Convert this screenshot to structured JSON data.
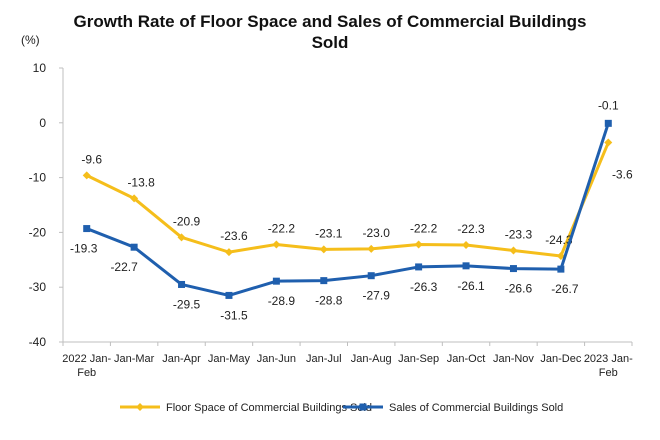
{
  "chart_data": {
    "type": "line",
    "title_line1": "Growth Rate of Floor Space and Sales of Commercial Buildings",
    "title_line2": "Sold",
    "unit": "(%)",
    "categories": [
      [
        "2022 Jan-",
        "Feb"
      ],
      [
        "Jan-Mar"
      ],
      [
        "Jan-Apr"
      ],
      [
        "Jan-May"
      ],
      [
        "Jan-Jun"
      ],
      [
        "Jan-Jul"
      ],
      [
        "Jan-Aug"
      ],
      [
        "Jan-Sep"
      ],
      [
        "Jan-Oct"
      ],
      [
        "Jan-Nov"
      ],
      [
        "Jan-Dec"
      ],
      [
        "2023 Jan-",
        "Feb"
      ]
    ],
    "ylim": [
      -40,
      10
    ],
    "yticks": [
      10,
      0,
      -10,
      -20,
      -30,
      -40
    ],
    "grid": false,
    "legend_position": "bottom",
    "series": [
      {
        "name": "Floor Space of Commercial Buildings Sold",
        "color": "#F5BE1B",
        "marker": "diamond",
        "values": [
          -9.6,
          -13.8,
          -20.9,
          -23.6,
          -22.2,
          -23.1,
          -23.0,
          -22.2,
          -22.3,
          -23.3,
          -24.3,
          -3.6
        ],
        "labels": [
          "-9.6",
          "-13.8",
          "-20.9",
          "-23.6",
          "-22.2",
          "-23.1",
          "-23.0",
          "-22.2",
          "-22.3",
          "-23.3",
          "-24.3",
          "-3.6"
        ]
      },
      {
        "name": "Sales of Commercial Buildings Sold",
        "color": "#1F5FAE",
        "marker": "square",
        "values": [
          -19.3,
          -22.7,
          -29.5,
          -31.5,
          -28.9,
          -28.8,
          -27.9,
          -26.3,
          -26.1,
          -26.6,
          -26.7,
          -0.1
        ],
        "labels": [
          "-19.3",
          "-22.7",
          "-29.5",
          "-31.5",
          "-28.9",
          "-28.8",
          "-27.9",
          "-26.3",
          "-26.1",
          "-26.6",
          "-26.7",
          "-0.1"
        ]
      }
    ]
  }
}
